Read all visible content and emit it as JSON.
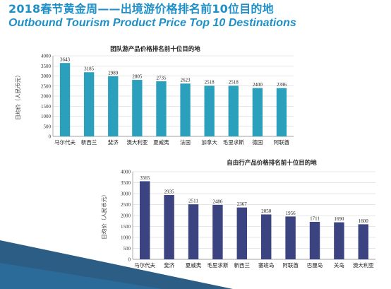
{
  "header": {
    "title_cn": "2018春节黄金周——出境游价格排名前10位目的地",
    "title_en": "Outbound Tourism Product Price Top 10 Destinations"
  },
  "colors": {
    "title": "#1f8fc7",
    "chart1_bar": "#2aa0bd",
    "chart2_bar": "#3b4381",
    "decoration": "#1a4f7a"
  },
  "chart_data": [
    {
      "type": "bar",
      "title": "团队游产品价格排名前十位目的地",
      "ylabel": "日均价（人民币元）",
      "xlabel": "",
      "categories": [
        "马尔代夫",
        "新西兰",
        "斐济",
        "澳大利亚",
        "夏威夷",
        "法国",
        "加拿大",
        "毛里求斯",
        "德国",
        "阿联酋"
      ],
      "values": [
        3643,
        3185,
        2989,
        2805,
        2735,
        2623,
        2518,
        2518,
        2400,
        2396
      ],
      "ylim": [
        0,
        4000
      ],
      "yticks": [
        0,
        500,
        1000,
        1500,
        2000,
        2500,
        3000,
        3500,
        4000
      ],
      "grid": true
    },
    {
      "type": "bar",
      "title": "自由行产品价格排名前十位目的地",
      "ylabel": "日均价（人民币元）",
      "xlabel": "",
      "categories": [
        "马尔代夫",
        "斐济",
        "夏威夷",
        "毛里求斯",
        "新西兰",
        "塞班岛",
        "阿联酋",
        "巴厘岛",
        "关岛",
        "澳大利亚"
      ],
      "values": [
        3565,
        2935,
        2511,
        2486,
        2367,
        2050,
        1956,
        1711,
        1690,
        1600
      ],
      "ylim": [
        0,
        4000
      ],
      "yticks": [
        0,
        500,
        1000,
        1500,
        2000,
        2500,
        3000,
        3500,
        4000
      ],
      "grid": true
    }
  ]
}
